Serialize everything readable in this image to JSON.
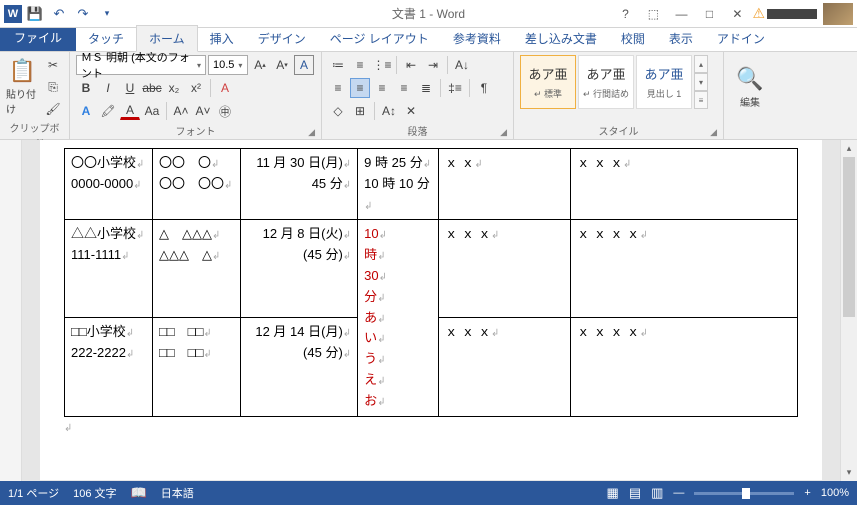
{
  "title": "文書 1 - Word",
  "tabs": {
    "file": "ファイル",
    "items": [
      "タッチ",
      "ホーム",
      "挿入",
      "デザイン",
      "ページ レイアウト",
      "参考資料",
      "差し込み文書",
      "校閲",
      "表示",
      "アドイン"
    ],
    "activeIndex": 1
  },
  "groups": {
    "clipboard": {
      "label": "クリップボード",
      "paste": "貼り付け"
    },
    "font": {
      "label": "フォント",
      "name": "ＭＳ 明朝 (本文のフォント",
      "size": "10.5"
    },
    "paragraph": {
      "label": "段落"
    },
    "styles": {
      "label": "スタイル",
      "items": [
        {
          "preview": "あア亜",
          "name": "↵ 標準"
        },
        {
          "preview": "あア亜",
          "name": "↵ 行間詰め"
        },
        {
          "preview": "あア亜",
          "name": "見出し 1"
        }
      ]
    },
    "editing": {
      "label": "編集"
    }
  },
  "table": {
    "rows": [
      {
        "c0": [
          "〇〇小学校",
          "0000-0000"
        ],
        "c1": [
          "〇〇　〇",
          "〇〇　〇〇"
        ],
        "c2": [
          "11 月 30 日(月)",
          "45 分"
        ],
        "c3": [
          "9 時 25 分",
          "10 時 10 分"
        ],
        "c4": [
          "ｘ ｘ"
        ],
        "c5": [
          "ｘ ｘ ｘ"
        ],
        "c3red": false
      },
      {
        "c0": [
          "△△小学校",
          "111-1111"
        ],
        "c1": [
          "△　△△△",
          "△△△　△"
        ],
        "c2": [
          "12 月 8 日(火)",
          "(45 分)"
        ],
        "c3": [
          "10",
          "時",
          "30",
          "分",
          "あ",
          "い",
          "う",
          "え",
          "お"
        ],
        "c4": [
          "ｘ ｘ ｘ"
        ],
        "c5": [
          "ｘ ｘ ｘ ｘ"
        ],
        "c3red": true
      },
      {
        "c0": [
          "□□小学校",
          "222-2222"
        ],
        "c1": [
          "□□　□□",
          "□□　□□"
        ],
        "c2": [
          "12 月 14 日(月)",
          "(45 分)"
        ],
        "c3": [],
        "c4": [
          "ｘ ｘ ｘ"
        ],
        "c5": [
          "ｘ ｘ ｘ ｘ"
        ],
        "c3red": false,
        "rowspan_from_above_c3": true
      }
    ]
  },
  "status": {
    "page": "1/1 ページ",
    "words": "106 文字",
    "lang": "日本語",
    "zoom": "100%"
  }
}
